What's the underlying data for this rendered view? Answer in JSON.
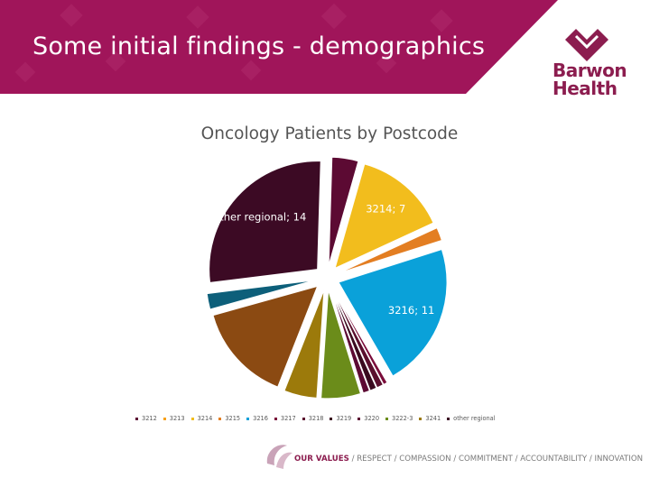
{
  "slide": {
    "title": "Some initial findings - demographics",
    "logo_line1": "Barwon",
    "logo_line2": "Health",
    "footer_strong": "OUR VALUES",
    "footer_text": "/ RESPECT / COMPASSION / COMMITMENT / ACCOUNTABILITY / INNOVATION"
  },
  "colors": {
    "brand": "#a0155a",
    "brand_dark": "#8c1d4f"
  },
  "chart_data": {
    "type": "pie",
    "title": "Oncology Patients by Postcode",
    "exploded": true,
    "legend_position": "bottom",
    "data_label_format": "category; value",
    "slices": [
      {
        "category": "3212",
        "value": 2,
        "color": "#5c0a33",
        "label": ""
      },
      {
        "category": "3213",
        "value": 0,
        "color": "#f7a11a",
        "label": ""
      },
      {
        "category": "3214",
        "value": 7,
        "color": "#f2bd1d",
        "label": "3214; 7"
      },
      {
        "category": "3215",
        "value": 1,
        "color": "#e37e22",
        "label": ""
      },
      {
        "category": "3216",
        "value": 11,
        "color": "#0aa1d9",
        "label": "3216; 11"
      },
      {
        "category": "3217",
        "value": 0.3,
        "color": "#7a0c3a",
        "label": ""
      },
      {
        "category": "3218",
        "value": 0.5,
        "color": "#5a0f2e",
        "label": ""
      },
      {
        "category": "3219",
        "value": 0.5,
        "color": "#3a0a1f",
        "label": ""
      },
      {
        "category": "3220",
        "value": 0.5,
        "color": "#5c0a33",
        "label": ""
      },
      {
        "category": "3222-3",
        "value": 3,
        "color": "#6b8c1a",
        "label": ""
      },
      {
        "category": "3241",
        "value": 2.5,
        "color": "#9c7a0b",
        "label": ""
      },
      {
        "category": "other regional",
        "value": 14,
        "color": "#3c0a24",
        "label": "other regional; 14"
      }
    ],
    "extra_slices": [
      {
        "value": 7.5,
        "color": "#8b4a12",
        "after": "3241"
      },
      {
        "value": 1.2,
        "color": "#0d5f7a",
        "after": "3241"
      }
    ],
    "legend": [
      "3212",
      "3213",
      "3214",
      "3215",
      "3216",
      "3217",
      "3218",
      "3219",
      "3220",
      "3222-3",
      "3241",
      "other regional"
    ]
  }
}
